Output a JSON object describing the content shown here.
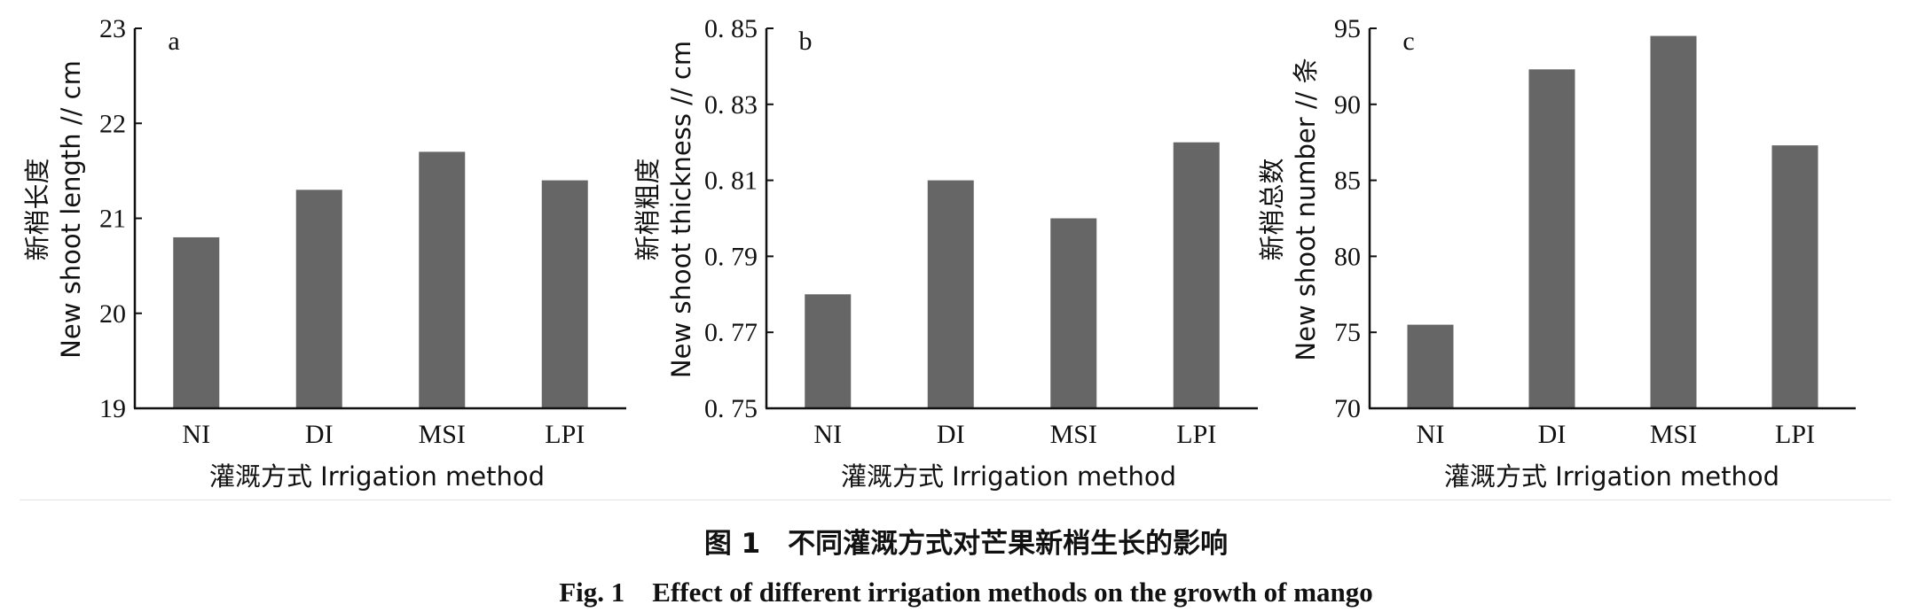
{
  "chart_data": [
    {
      "type": "bar",
      "panel_label": "a",
      "categories": [
        "NI",
        "DI",
        "MSI",
        "LPI"
      ],
      "values": [
        20.8,
        21.3,
        21.7,
        21.4
      ],
      "ylim": [
        19,
        23
      ],
      "yticks": [
        "19",
        "20",
        "21",
        "22",
        "23"
      ],
      "ylabel_cn": "新梢长度",
      "ylabel_en": "New shoot length // cm",
      "xlabel": "灌溉方式 Irrigation method",
      "bar_color": "#666666",
      "grid": false
    },
    {
      "type": "bar",
      "panel_label": "b",
      "categories": [
        "NI",
        "DI",
        "MSI",
        "LPI"
      ],
      "values": [
        0.78,
        0.81,
        0.8,
        0.82
      ],
      "ylim": [
        0.75,
        0.85
      ],
      "yticks": [
        "0. 75",
        "0. 77",
        "0. 79",
        "0. 81",
        "0. 83",
        "0. 85"
      ],
      "ylabel_cn": "新梢粗度",
      "ylabel_en": "New shoot thickness // cm",
      "xlabel": "灌溉方式 Irrigation method",
      "bar_color": "#666666",
      "grid": false
    },
    {
      "type": "bar",
      "panel_label": "c",
      "categories": [
        "NI",
        "DI",
        "MSI",
        "LPI"
      ],
      "values": [
        75.5,
        92.3,
        94.5,
        87.3
      ],
      "ylim": [
        70,
        95
      ],
      "yticks": [
        "70",
        "75",
        "80",
        "85",
        "90",
        "95"
      ],
      "ylabel_cn": "新梢总数",
      "ylabel_en": "New shoot number // 条",
      "xlabel": "灌溉方式 Irrigation method",
      "bar_color": "#666666",
      "grid": false
    }
  ],
  "caption": {
    "cn": "图 1　不同灌溉方式对芒果新梢生长的影响",
    "en": "Fig. 1　Effect of different irrigation methods on the growth of mango"
  }
}
